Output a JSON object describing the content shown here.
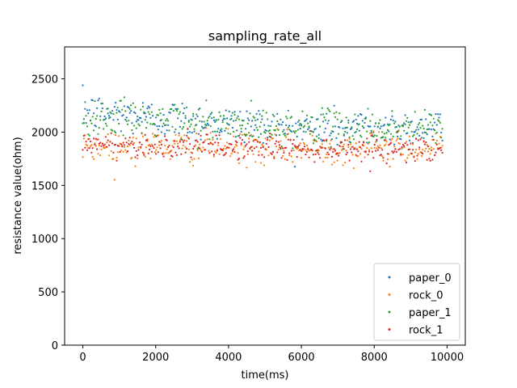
{
  "chart_data": {
    "type": "scatter",
    "title": "sampling_rate_all",
    "xlabel": "time(ms)",
    "ylabel": "resistance value(ohm)",
    "xlim": [
      -500,
      10500
    ],
    "ylim": [
      0,
      2800
    ],
    "xticks": [
      0,
      2000,
      4000,
      6000,
      8000,
      10000
    ],
    "yticks": [
      0,
      500,
      1000,
      1500,
      2000,
      2500
    ],
    "grid": false,
    "legend_position": "lower-right",
    "x_range": [
      0,
      9870
    ],
    "sampling_interval_ms": 30,
    "series": [
      {
        "name": "paper_0",
        "color": "#1f77b4",
        "mean": [
          2190,
          2040
        ],
        "spread": 90
      },
      {
        "name": "rock_0",
        "color": "#ff7f0e",
        "mean": [
          1870,
          1850
        ],
        "spread": 75
      },
      {
        "name": "paper_1",
        "color": "#2ca02c",
        "mean": [
          2150,
          2040
        ],
        "spread": 85
      },
      {
        "name": "rock_1",
        "color": "#d62728",
        "mean": [
          1890,
          1845
        ],
        "spread": 55
      }
    ]
  }
}
